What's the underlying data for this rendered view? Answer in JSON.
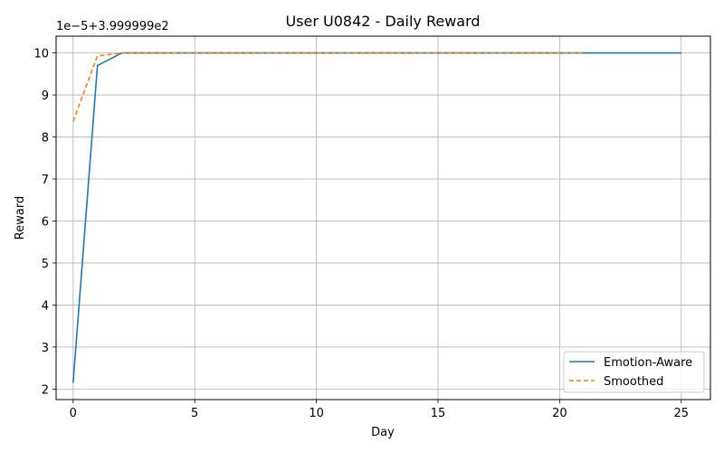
{
  "chart_data": {
    "type": "line",
    "title": "User U0842 - Daily Reward",
    "xlabel": "Day",
    "ylabel": "Reward",
    "offset_label": "1e−5+3.999999e2",
    "xlim": [
      -0.7,
      26.2
    ],
    "ylim": [
      1.75,
      10.4
    ],
    "xticks": [
      0,
      5,
      10,
      15,
      20,
      25
    ],
    "yticks": [
      2,
      3,
      4,
      5,
      6,
      7,
      8,
      9,
      10
    ],
    "grid": true,
    "legend": "lower-right",
    "series": [
      {
        "name": "Emotion-Aware",
        "color": "#1f77b4",
        "style": "solid",
        "x": [
          0,
          1,
          2,
          3,
          4,
          5,
          6,
          7,
          8,
          9,
          10,
          11,
          12,
          13,
          14,
          15,
          16,
          17,
          18,
          19,
          20,
          21,
          22,
          23,
          24,
          25
        ],
        "y": [
          2.15,
          9.7,
          10,
          10,
          10,
          10,
          10,
          10,
          10,
          10,
          10,
          10,
          10,
          10,
          10,
          10,
          10,
          10,
          10,
          10,
          10,
          10,
          10,
          10,
          10,
          10
        ]
      },
      {
        "name": "Smoothed",
        "color": "#ff7f0e",
        "style": "dashed",
        "x": [
          0,
          1,
          2,
          3,
          4,
          5,
          6,
          7,
          8,
          9,
          10,
          11,
          12,
          13,
          14,
          15,
          16,
          17,
          18,
          19,
          20,
          21
        ],
        "y": [
          8.37,
          9.93,
          10,
          10,
          10,
          10,
          10,
          10,
          10,
          10,
          10,
          10,
          10,
          10,
          10,
          10,
          10,
          10,
          10,
          10,
          10,
          10
        ]
      }
    ]
  }
}
